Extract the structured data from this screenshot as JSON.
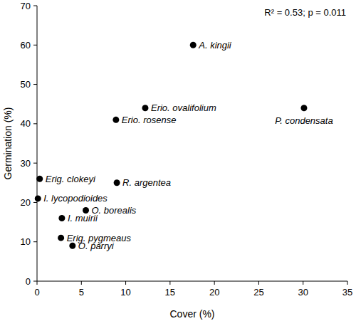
{
  "chart_data": {
    "type": "scatter",
    "x_label": "Cover (%)",
    "y_label": "Germination (%)",
    "annotation": "R² = 0.53; p = 0.011",
    "x": [
      17.6,
      12.2,
      8.9,
      30.1,
      0.3,
      9.0,
      0.1,
      2.8,
      5.5,
      2.7,
      4.0
    ],
    "values": [
      60,
      44,
      41,
      44,
      26,
      25,
      21,
      16,
      18,
      11,
      9
    ],
    "labels": [
      "A. kingii",
      "Erio. ovalifolium",
      "Erio. rosense",
      "P. condensata",
      "Erig. clokeyi",
      "R. argentea",
      "I. lycopodioides",
      "I. muirii",
      "O. borealis",
      "Erig. pygmeaus",
      "O. parryi"
    ],
    "color": "#000000",
    "marker": "circle",
    "xlim": [
      0,
      35
    ],
    "xticks": [
      0,
      5,
      10,
      15,
      20,
      25,
      30,
      35
    ],
    "ylim": [
      0,
      70
    ],
    "yticks": [
      0,
      10,
      20,
      30,
      40,
      50,
      60,
      70
    ],
    "grid": false
  }
}
